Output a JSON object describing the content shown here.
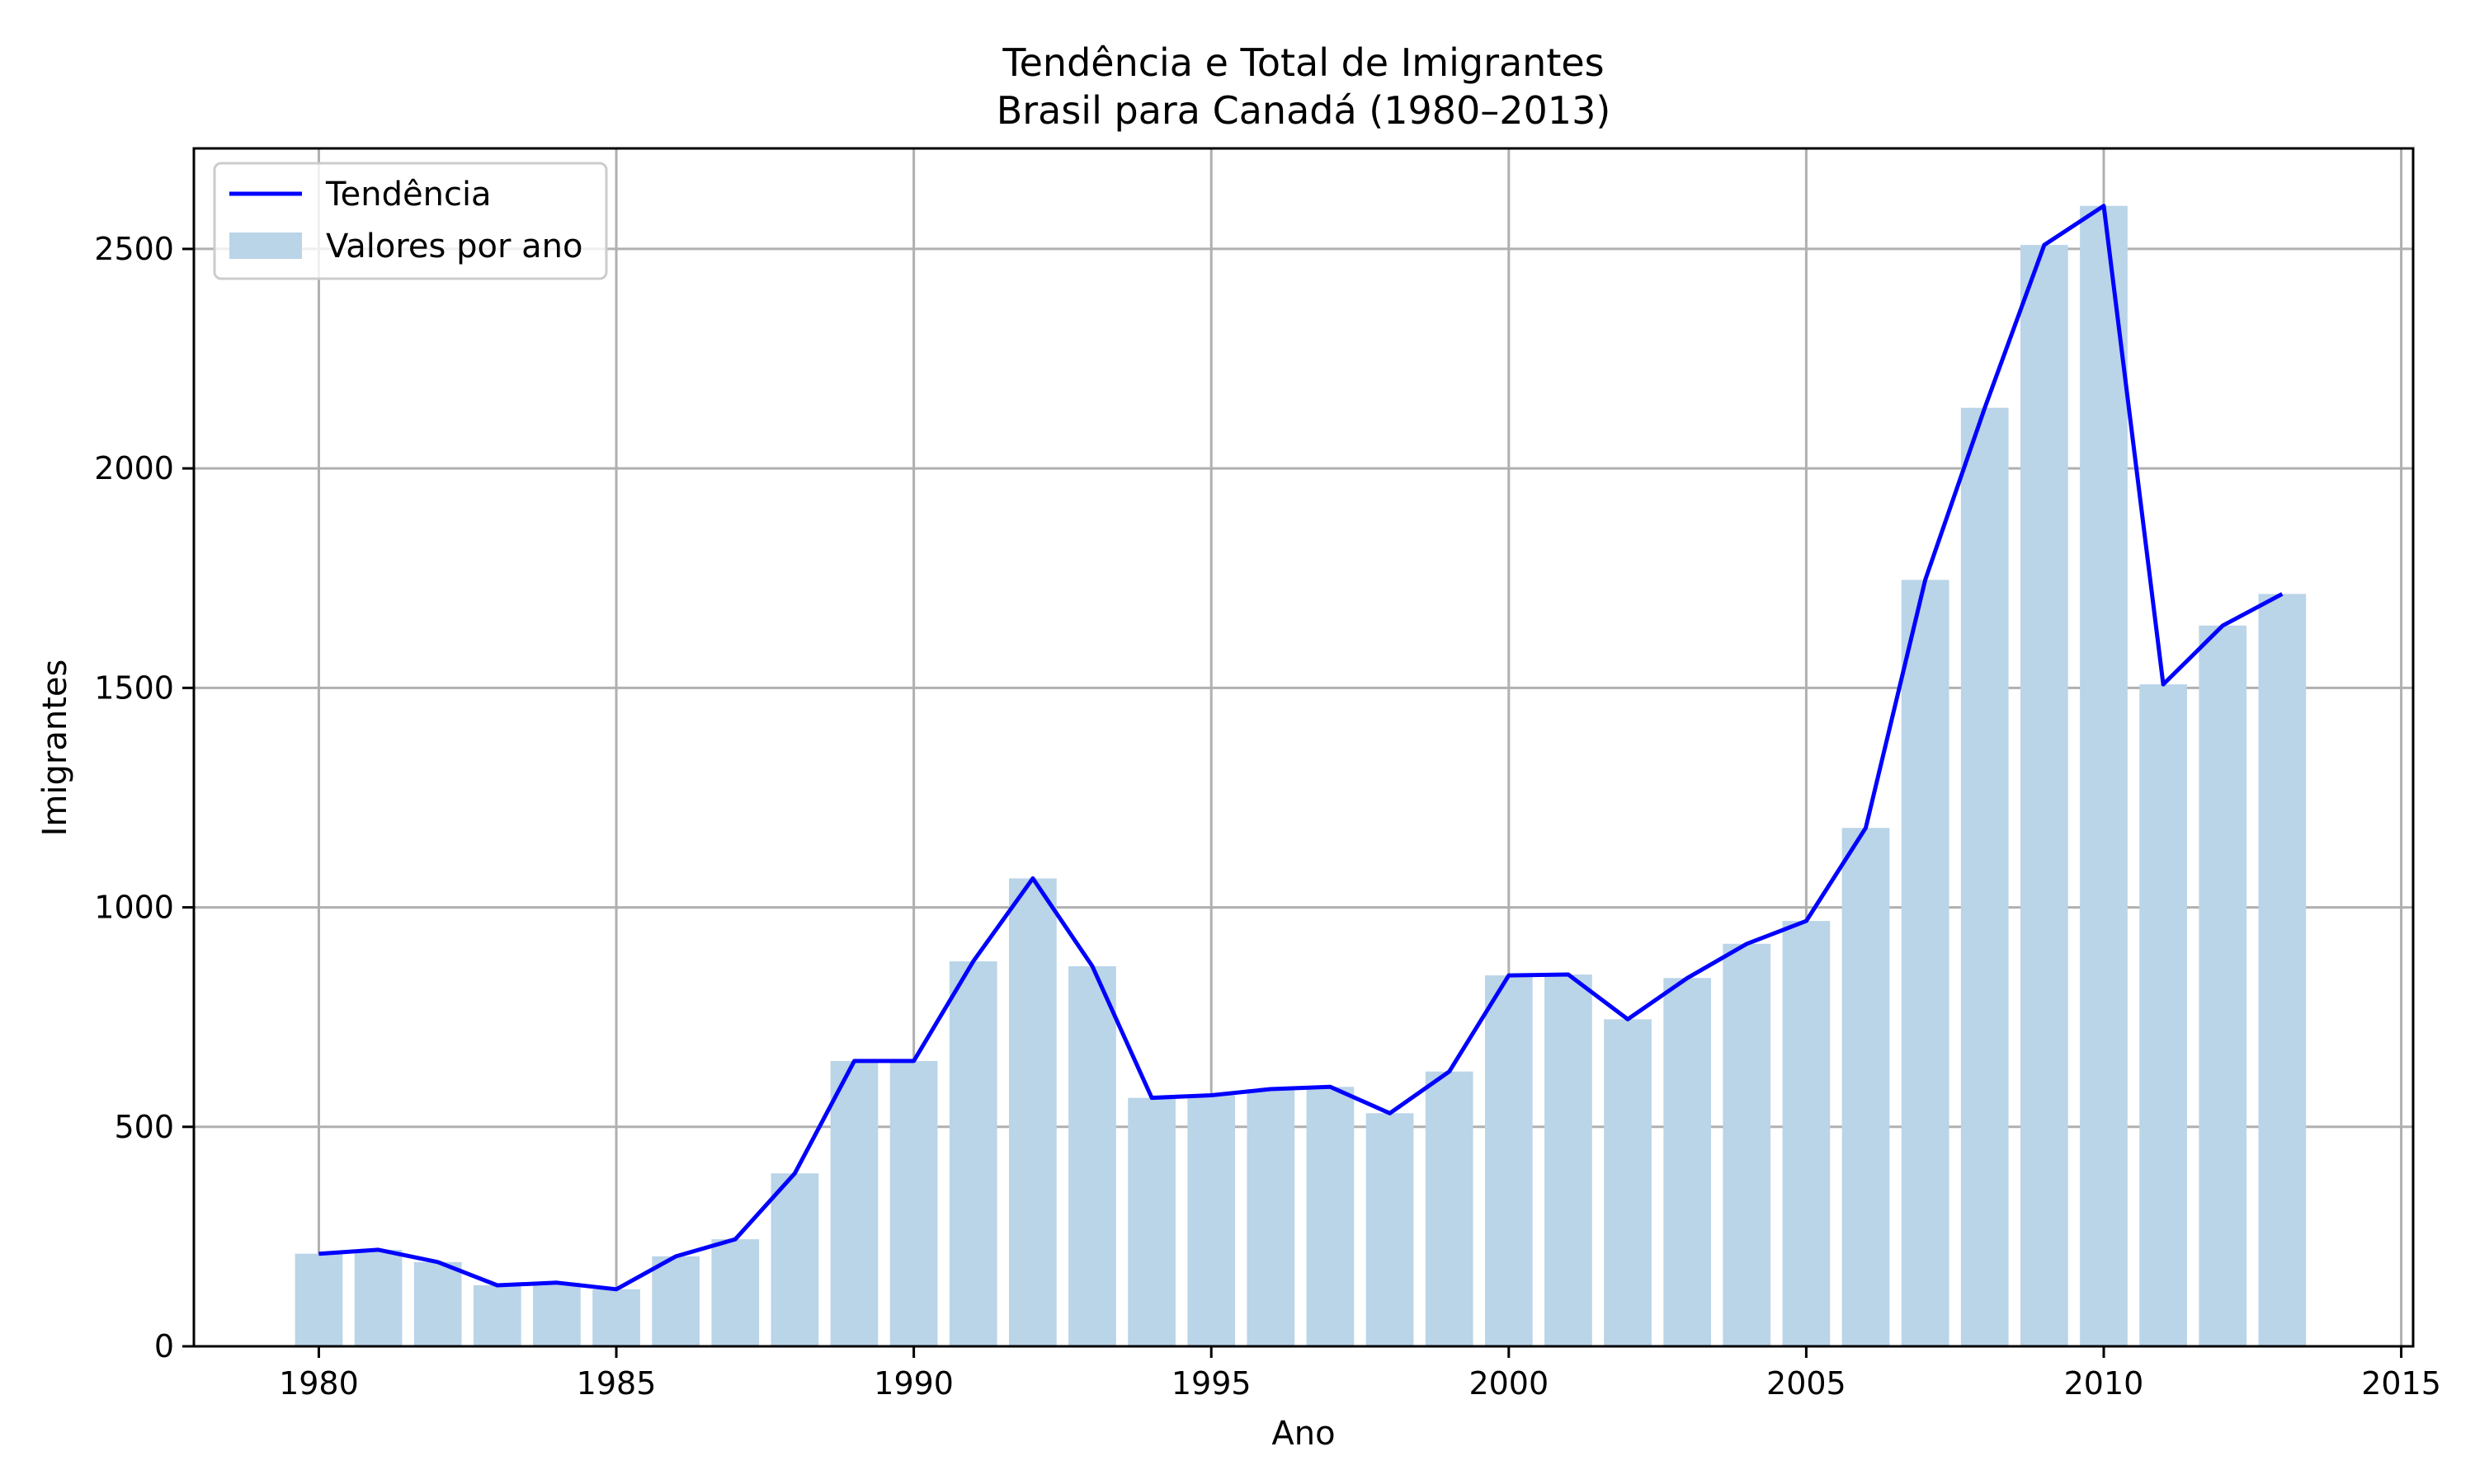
{
  "chart_data": {
    "type": "bar",
    "title": "Tendência e Total de Imigrantes",
    "subtitle": "Brasil para Canadá (1980–2013)",
    "xlabel": "Ano",
    "ylabel": "Imigrantes",
    "xlim": [
      1977.9,
      2015.2
    ],
    "ylim": [
      0,
      2729
    ],
    "xticks": [
      1980,
      1985,
      1990,
      1995,
      2000,
      2005,
      2010,
      2015
    ],
    "xtick_labels": [
      "1980",
      "1985",
      "1990",
      "1995",
      "2000",
      "2005",
      "2010",
      "2015"
    ],
    "yticks": [
      0,
      500,
      1000,
      1500,
      2000,
      2500
    ],
    "ytick_labels": [
      "0",
      "500",
      "1000",
      "1500",
      "2000",
      "2500"
    ],
    "grid": true,
    "legend_position": "top-left",
    "x": [
      1980,
      1981,
      1982,
      1983,
      1984,
      1985,
      1986,
      1987,
      1988,
      1989,
      1990,
      1991,
      1992,
      1993,
      1994,
      1995,
      1996,
      1997,
      1998,
      1999,
      2000,
      2001,
      2002,
      2003,
      2004,
      2005,
      2006,
      2007,
      2008,
      2009,
      2010,
      2011,
      2012,
      2013
    ],
    "series": [
      {
        "name": "Tendência",
        "type": "line",
        "color": "#0000ff",
        "values": [
          211,
          220,
          192,
          139,
          145,
          130,
          205,
          244,
          394,
          650,
          650,
          877,
          1066,
          866,
          566,
          572,
          586,
          591,
          531,
          626,
          845,
          847,
          745,
          839,
          917,
          969,
          1181,
          1746,
          2138,
          2509,
          2598,
          1508,
          1642,
          1714
        ]
      },
      {
        "name": "Valores por ano",
        "type": "bar",
        "color": "#bad4e8",
        "values": [
          211,
          220,
          192,
          139,
          145,
          130,
          205,
          244,
          394,
          650,
          650,
          877,
          1066,
          866,
          566,
          572,
          586,
          591,
          531,
          626,
          845,
          847,
          745,
          839,
          917,
          969,
          1181,
          1746,
          2138,
          2509,
          2598,
          1508,
          1642,
          1714
        ]
      }
    ]
  }
}
